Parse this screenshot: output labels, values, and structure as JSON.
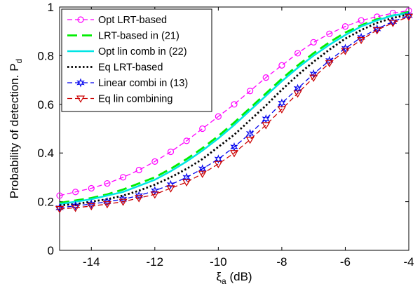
{
  "chart_data": {
    "type": "line",
    "xlabel": "ξ",
    "xlabel_sub": "a",
    "xlabel_unit": " (dB)",
    "ylabel": "Probability of detection. P",
    "ylabel_sub": "d",
    "xlim": [
      -15,
      -4
    ],
    "ylim": [
      0,
      1
    ],
    "xticks": [
      -14,
      -12,
      -10,
      -8,
      -6,
      -4
    ],
    "yticks": [
      0,
      0.2,
      0.4,
      0.6,
      0.8,
      1
    ],
    "grid": false,
    "legend_position": "top-left",
    "x": [
      -15,
      -14.5,
      -14,
      -13.5,
      -13,
      -12.5,
      -12,
      -11.5,
      -11,
      -10.5,
      -10,
      -9.5,
      -9,
      -8.5,
      -8,
      -7.5,
      -7,
      -6.5,
      -6,
      -5.5,
      -5,
      -4.5,
      -4
    ],
    "series": [
      {
        "name": "Opt  LRT-based",
        "color": "#ff00ff",
        "dash": "7,4",
        "marker": "circle",
        "values": [
          0.225,
          0.24,
          0.255,
          0.275,
          0.3,
          0.33,
          0.365,
          0.405,
          0.45,
          0.5,
          0.55,
          0.6,
          0.655,
          0.71,
          0.76,
          0.81,
          0.855,
          0.89,
          0.92,
          0.945,
          0.96,
          0.975,
          0.985
        ]
      },
      {
        "name": "LRT-based in (21)",
        "color": "#00ee00",
        "dash": "14,7",
        "marker": "none",
        "values": [
          0.195,
          0.205,
          0.215,
          0.23,
          0.25,
          0.275,
          0.3,
          0.335,
          0.375,
          0.42,
          0.47,
          0.525,
          0.585,
          0.645,
          0.705,
          0.76,
          0.81,
          0.855,
          0.895,
          0.925,
          0.95,
          0.965,
          0.98
        ]
      },
      {
        "name": "Opt lin comb in (22)",
        "color": "#00e5e5",
        "dash": "",
        "marker": "none",
        "values": [
          0.19,
          0.2,
          0.21,
          0.225,
          0.24,
          0.265,
          0.29,
          0.325,
          0.365,
          0.41,
          0.46,
          0.515,
          0.575,
          0.635,
          0.695,
          0.75,
          0.8,
          0.845,
          0.885,
          0.92,
          0.945,
          0.965,
          0.975
        ]
      },
      {
        "name": "Eq LRT-based",
        "color": "#000000",
        "dash": "2.5,3",
        "marker": "none",
        "values": [
          0.185,
          0.19,
          0.2,
          0.21,
          0.225,
          0.245,
          0.27,
          0.3,
          0.335,
          0.375,
          0.425,
          0.475,
          0.535,
          0.595,
          0.66,
          0.72,
          0.775,
          0.825,
          0.87,
          0.905,
          0.935,
          0.955,
          0.97
        ]
      },
      {
        "name": "Linear combi in (13)",
        "color": "#0000ee",
        "dash": "7,4",
        "marker": "star",
        "values": [
          0.175,
          0.183,
          0.19,
          0.2,
          0.21,
          0.225,
          0.245,
          0.27,
          0.3,
          0.335,
          0.375,
          0.425,
          0.48,
          0.54,
          0.605,
          0.665,
          0.725,
          0.78,
          0.83,
          0.875,
          0.91,
          0.94,
          0.965
        ]
      },
      {
        "name": "Eq  lin combining",
        "color": "#cc0000",
        "dash": "7,4",
        "marker": "triangle",
        "values": [
          0.17,
          0.175,
          0.182,
          0.19,
          0.2,
          0.215,
          0.23,
          0.255,
          0.28,
          0.315,
          0.355,
          0.4,
          0.455,
          0.515,
          0.58,
          0.645,
          0.71,
          0.77,
          0.82,
          0.865,
          0.905,
          0.935,
          0.96
        ]
      }
    ]
  }
}
